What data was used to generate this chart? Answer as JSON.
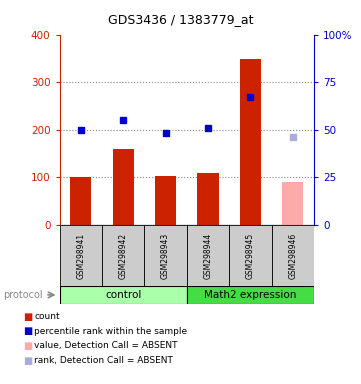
{
  "title": "GDS3436 / 1383779_at",
  "samples": [
    "GSM298941",
    "GSM298942",
    "GSM298943",
    "GSM298944",
    "GSM298945",
    "GSM298946"
  ],
  "bar_values": [
    100,
    160,
    102,
    108,
    348,
    90
  ],
  "bar_colors": [
    "#cc2200",
    "#cc2200",
    "#cc2200",
    "#cc2200",
    "#cc2200",
    "#ffaaaa"
  ],
  "rank_values": [
    50,
    55,
    48,
    51,
    67,
    46
  ],
  "rank_colors": [
    "#0000cc",
    "#0000cc",
    "#0000cc",
    "#0000cc",
    "#0000cc",
    "#aaaadd"
  ],
  "ylim_left": [
    0,
    400
  ],
  "ylim_right": [
    0,
    100
  ],
  "yticks_left": [
    0,
    100,
    200,
    300,
    400
  ],
  "yticks_right": [
    0,
    25,
    50,
    75,
    100
  ],
  "yticklabels_right": [
    "0",
    "25",
    "50",
    "75",
    "100%"
  ],
  "left_axis_color": "#cc2200",
  "right_axis_color": "#0000cc",
  "grid_color": "#888888",
  "control_color": "#aaffaa",
  "math2_color": "#44dd44",
  "sample_box_color": "#cccccc",
  "bar_width": 0.5,
  "legend_items": [
    {
      "label": "count",
      "color": "#cc2200"
    },
    {
      "label": "percentile rank within the sample",
      "color": "#0000cc"
    },
    {
      "label": "value, Detection Call = ABSENT",
      "color": "#ffaaaa"
    },
    {
      "label": "rank, Detection Call = ABSENT",
      "color": "#aaaadd"
    }
  ]
}
